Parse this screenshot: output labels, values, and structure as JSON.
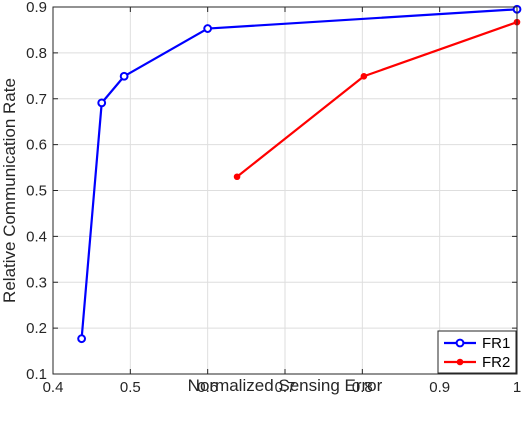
{
  "chart_data": {
    "type": "line",
    "title": "",
    "xlabel": "Normalized Sensing Error",
    "ylabel": "Relative Communication Rate",
    "xlim": [
      0.4,
      1.0
    ],
    "ylim": [
      0.1,
      0.9
    ],
    "xticks": [
      "0.4",
      "0.5",
      "0.6",
      "0.7",
      "0.8",
      "0.9",
      "1"
    ],
    "yticks": [
      "0.1",
      "0.2",
      "0.3",
      "0.4",
      "0.5",
      "0.6",
      "0.7",
      "0.8",
      "0.9"
    ],
    "grid": true,
    "legend_position": "bottom-right",
    "series": [
      {
        "name": "FR1",
        "color": "#0000ff",
        "marker": "open-circle",
        "x": [
          0.437,
          0.463,
          0.492,
          0.6,
          1.0
        ],
        "y": [
          0.177,
          0.691,
          0.749,
          0.853,
          0.895
        ]
      },
      {
        "name": "FR2",
        "color": "#ff0000",
        "marker": "filled-dot",
        "x": [
          0.638,
          0.802,
          1.0
        ],
        "y": [
          0.53,
          0.749,
          0.867
        ]
      }
    ]
  }
}
